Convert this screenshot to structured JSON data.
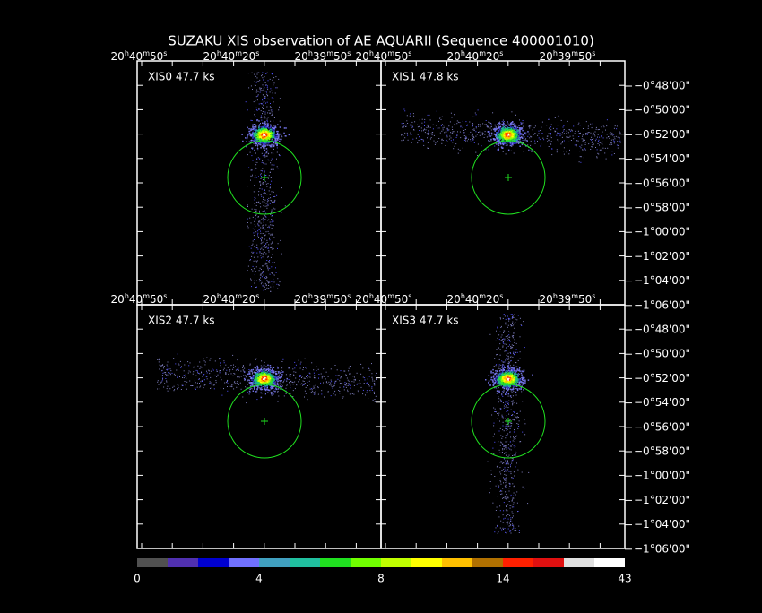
{
  "title": "SUZAKU XIS observation of AE AQUARII  (Sequence 400001010)",
  "ra_units": {
    "h": "h",
    "m": "m",
    "s": "s"
  },
  "panels": [
    {
      "label": "XIS0 47.7 ks"
    },
    {
      "label": "XIS1 47.8 ks"
    },
    {
      "label": "XIS2 47.7 ks"
    },
    {
      "label": "XIS3 47.7 ks"
    }
  ],
  "ra_labels": [
    {
      "hours": "20",
      "minutes": "40",
      "seconds": "50"
    },
    {
      "hours": "20",
      "minutes": "40",
      "seconds": "20"
    },
    {
      "hours": "20",
      "minutes": "39",
      "seconds": "50"
    }
  ],
  "dec_labels": [
    "−0°48'00\"",
    "−0°50'00\"",
    "−0°52'00\"",
    "−0°54'00\"",
    "−0°56'00\"",
    "−0°58'00\"",
    "−1°00'00\"",
    "−1°02'00\"",
    "−1°04'00\"",
    "−1°06'00\""
  ],
  "colorbar_labels": [
    "0",
    "4",
    "8",
    "14",
    "43"
  ]
}
